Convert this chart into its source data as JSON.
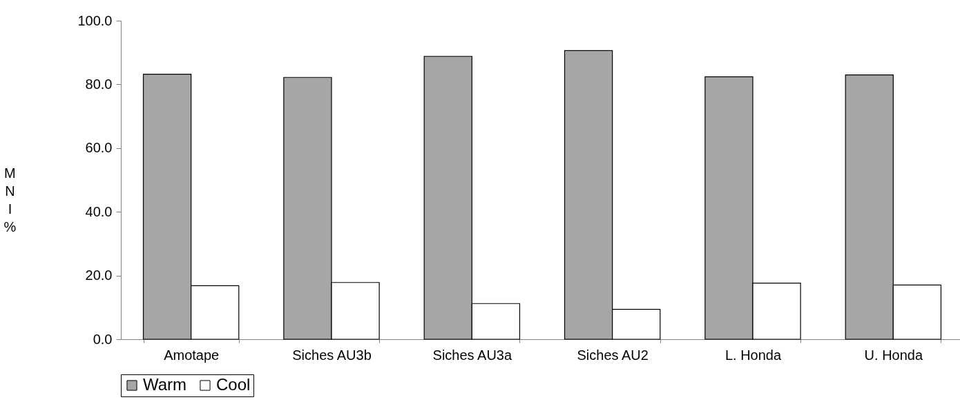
{
  "chart_data": {
    "type": "bar",
    "ylabel": "MNI%",
    "categories": [
      "Amotape",
      "Siches AU3b",
      "Siches AU3a",
      "Siches AU2",
      "L. Honda",
      "U. Honda"
    ],
    "series": [
      {
        "name": "Warm",
        "color": "#a6a6a6",
        "values": [
          83.2,
          82.2,
          88.8,
          90.6,
          82.4,
          83.0
        ]
      },
      {
        "name": "Cool",
        "color": "#ffffff",
        "values": [
          16.8,
          17.8,
          11.2,
          9.4,
          17.6,
          17.0
        ]
      }
    ],
    "ylim": [
      0,
      100
    ],
    "yticks": [
      {
        "value": 0,
        "label": "0.0"
      },
      {
        "value": 20,
        "label": "20.0"
      },
      {
        "value": 40,
        "label": "40.0"
      },
      {
        "value": 60,
        "label": "60.0"
      },
      {
        "value": 80,
        "label": "80.0"
      },
      {
        "value": 100,
        "label": "100.0"
      }
    ],
    "grid": false,
    "legend": "bottom"
  }
}
